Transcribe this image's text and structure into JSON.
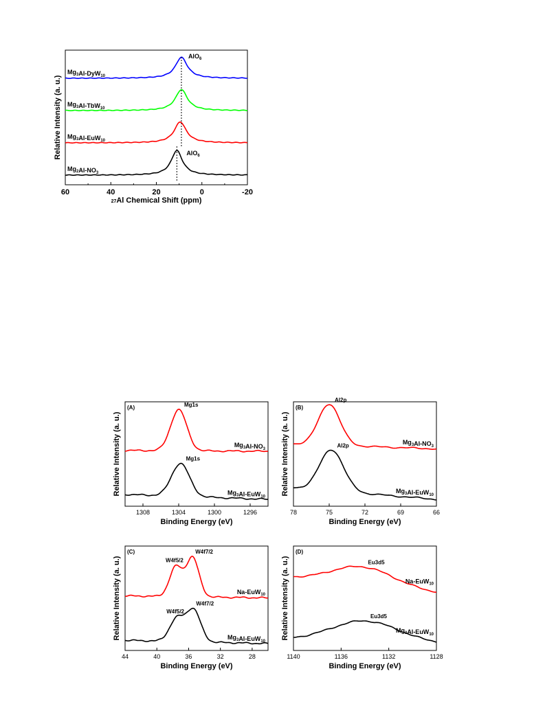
{
  "chart_data": [
    {
      "id": "nmr",
      "type": "line",
      "title": "",
      "xlabel": {
        "sup": "27",
        "text": "Al Chemical Shift (ppm)"
      },
      "ylabel": "Relative Intensity (a. u.)",
      "xlim": [
        60,
        -20
      ],
      "xticks": [
        "60",
        "40",
        "20",
        "0",
        "-20"
      ],
      "peak_labels": [
        {
          "text": "AlO",
          "sub": "6",
          "x": 9
        },
        {
          "text": "AlO",
          "sub": "6",
          "x": 11
        }
      ],
      "series": [
        {
          "name": "Mg3Al-DyW10",
          "label_parts": [
            [
              "Mg",
              ""
            ],
            [
              "3",
              "sub"
            ],
            [
              "Al-DyW",
              ""
            ],
            [
              "10",
              "sub"
            ]
          ],
          "color": "#0000ff",
          "peak": 9,
          "width": 3.2,
          "height": 0.85,
          "baseline": 3
        },
        {
          "name": "Mg3Al-TbW10",
          "label_parts": [
            [
              "Mg",
              ""
            ],
            [
              "3",
              "sub"
            ],
            [
              "Al-TbW",
              ""
            ],
            [
              "10",
              "sub"
            ]
          ],
          "color": "#00ff00",
          "peak": 9,
          "width": 3.2,
          "height": 0.85,
          "baseline": 2
        },
        {
          "name": "Mg3Al-EuW10",
          "label_parts": [
            [
              "Mg",
              ""
            ],
            [
              "3",
              "sub"
            ],
            [
              "Al-EuW",
              ""
            ],
            [
              "10",
              "sub"
            ]
          ],
          "color": "#ff0000",
          "peak": 9.5,
          "width": 3.2,
          "height": 0.85,
          "baseline": 1
        },
        {
          "name": "Mg2Al-NO3",
          "label_parts": [
            [
              "Mg",
              ""
            ],
            [
              "2",
              "sub"
            ],
            [
              "Al-NO",
              ""
            ],
            [
              "3",
              "sub"
            ]
          ],
          "color": "#000000",
          "peak": 11,
          "width": 3.0,
          "height": 1.0,
          "baseline": 0
        }
      ]
    },
    {
      "id": "A",
      "type": "line",
      "panel_label": "(A)",
      "xlabel": "Binding Energy (eV)",
      "ylabel": "Relative Intensity (a. u.)",
      "xlim": [
        1310,
        1294
      ],
      "xticks": [
        "1308",
        "1304",
        "1300",
        "1296"
      ],
      "xtick_values": [
        1308,
        1304,
        1300,
        1296
      ],
      "series": [
        {
          "name": "Mg3Al-NO3",
          "label_parts": [
            [
              "Mg",
              ""
            ],
            [
              "3",
              "sub"
            ],
            [
              "Al-NO",
              ""
            ],
            [
              "3",
              "sub"
            ]
          ],
          "color": "#ff0000",
          "peak_label": "Mg1s",
          "peak": 1304,
          "sigma": 0.9,
          "height": 1.0,
          "base_left": 0.02,
          "base_right": 0.0,
          "offset": 1.0
        },
        {
          "name": "Mg3Al-EuW10",
          "label_parts": [
            [
              "Mg",
              ""
            ],
            [
              "3",
              "sub"
            ],
            [
              "Al-EuW",
              ""
            ],
            [
              "10",
              "sub"
            ]
          ],
          "color": "#000000",
          "peak_label": "Mg1s",
          "peak": 1303.8,
          "sigma": 1.0,
          "height": 0.8,
          "base_left": 0.12,
          "base_right": 0.0,
          "offset": 0.0
        }
      ]
    },
    {
      "id": "B",
      "type": "line",
      "panel_label": "(B)",
      "xlabel": "Binding Energy (eV)",
      "ylabel": "Relative Intensity (a. u.)",
      "xlim": [
        78,
        66
      ],
      "xticks": [
        "78",
        "75",
        "72",
        "69",
        "66"
      ],
      "xtick_values": [
        78,
        75,
        72,
        69,
        66
      ],
      "series": [
        {
          "name": "Mg3Al-NO3",
          "label_parts": [
            [
              "Mg",
              ""
            ],
            [
              "3",
              "sub"
            ],
            [
              "Al-NO",
              ""
            ],
            [
              "3",
              "sub"
            ]
          ],
          "color": "#ff0000",
          "peak_label": "Al2p",
          "peak": 75,
          "sigma": 0.9,
          "height": 1.0,
          "base_left": 0.12,
          "base_right": 0.0,
          "offset": 1.05
        },
        {
          "name": "Mg3Al-EuW10",
          "label_parts": [
            [
              "Mg",
              ""
            ],
            [
              "3",
              "sub"
            ],
            [
              "Al-EuW",
              ""
            ],
            [
              "10",
              "sub"
            ]
          ],
          "color": "#000000",
          "peak_label": "Al2p",
          "peak": 74.8,
          "sigma": 1.0,
          "height": 1.0,
          "base_left": 0.28,
          "base_right": 0.0,
          "offset": 0.0
        }
      ]
    },
    {
      "id": "C",
      "type": "line",
      "panel_label": "(C)",
      "xlabel": "Binding Energy (eV)",
      "ylabel": "Relative Intensity (a. u.)",
      "xlim": [
        44,
        26
      ],
      "xticks": [
        "44",
        "40",
        "36",
        "32",
        "28"
      ],
      "xtick_values": [
        44,
        40,
        36,
        32,
        28
      ],
      "series": [
        {
          "name": "Na-EuW10",
          "label_parts": [
            [
              "Na-EuW",
              ""
            ],
            [
              "10",
              "sub"
            ]
          ],
          "color": "#ff0000",
          "peak_labels": [
            "W4f5/2",
            "W4f7/2"
          ],
          "peaks": [
            [
              37.6,
              0.8,
              0.72
            ],
            [
              35.5,
              0.8,
              0.95
            ]
          ],
          "base_left": 0.05,
          "base_right": 0.0,
          "offset": 0.95
        },
        {
          "name": "Mg3Al-EuW10",
          "label_parts": [
            [
              "Mg",
              ""
            ],
            [
              "3",
              "sub"
            ],
            [
              "Al-EuW",
              ""
            ],
            [
              "10",
              "sub"
            ]
          ],
          "color": "#000000",
          "peak_labels": [
            "W4f5/2",
            "W4f7/2"
          ],
          "peaks": [
            [
              37.5,
              0.9,
              0.55
            ],
            [
              35.4,
              0.9,
              0.78
            ]
          ],
          "base_left": 0.08,
          "base_right": 0.0,
          "offset": 0.0
        }
      ]
    },
    {
      "id": "D",
      "type": "line",
      "panel_label": "(D)",
      "xlabel": "Binding Energy (eV)",
      "ylabel": "Relative Intensity (a. u.)",
      "xlim": [
        1140,
        1128
      ],
      "xticks": [
        "1140",
        "1136",
        "1132",
        "1128"
      ],
      "xtick_values": [
        1140,
        1136,
        1132,
        1128
      ],
      "series": [
        {
          "name": "Na-EuW10",
          "label_parts": [
            [
              "Na-EuW",
              ""
            ],
            [
              "10",
              "sub"
            ]
          ],
          "color": "#ff0000",
          "peak_label": "Eu3d5",
          "peak": 1134.2,
          "sigma": 2.6,
          "height": 0.45,
          "base_left": 0.48,
          "base_right": 0.12,
          "offset": 0.95
        },
        {
          "name": "Mg3Al-EuW10",
          "label_parts": [
            [
              "Mg",
              ""
            ],
            [
              "3",
              "sub"
            ],
            [
              "Al-EuW",
              ""
            ],
            [
              "10",
              "sub"
            ]
          ],
          "color": "#000000",
          "peak_label": "Eu3d5",
          "peak": 1134.0,
          "sigma": 2.8,
          "height": 0.5,
          "base_left": 0.1,
          "base_right": 0.0,
          "offset": 0.0
        }
      ]
    }
  ]
}
